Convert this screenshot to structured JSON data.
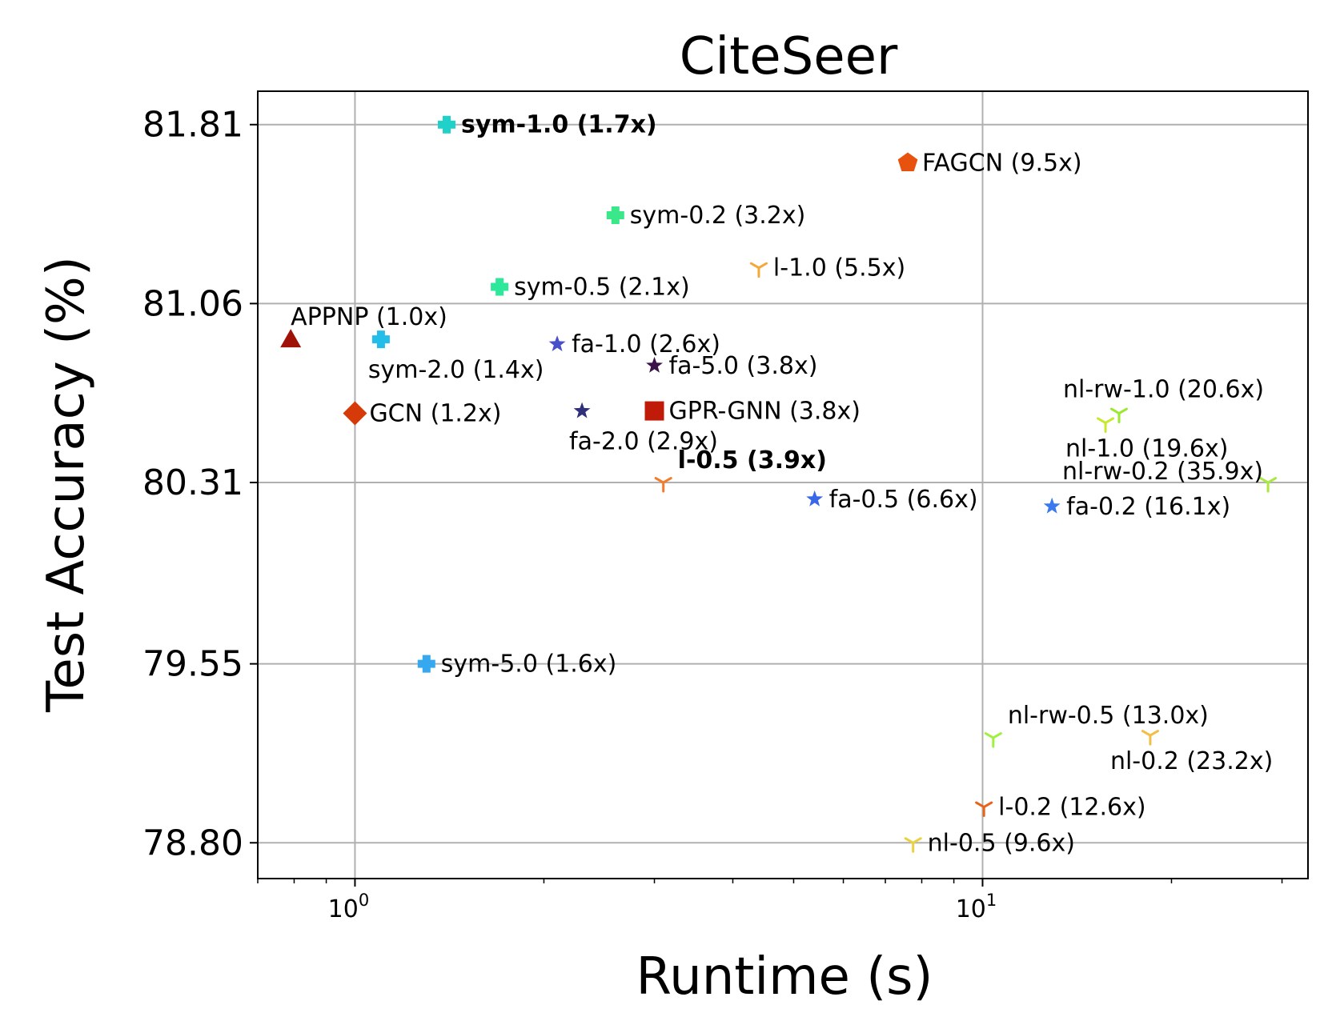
{
  "chart_data": {
    "type": "scatter",
    "title": "CiteSeer",
    "xlabel": "Runtime (s)",
    "ylabel": "Test Accuracy (%)",
    "xscale": "log",
    "xlim": [
      0.7,
      33
    ],
    "ylim": [
      78.65,
      81.95
    ],
    "grid": true,
    "xticks": [
      {
        "base": "10",
        "exp": "0",
        "value": 1
      },
      {
        "base": "10",
        "exp": "1",
        "value": 10
      }
    ],
    "yticks": [
      {
        "value": 78.8,
        "label": "78.80"
      },
      {
        "value": 79.55,
        "label": "79.55"
      },
      {
        "value": 80.31,
        "label": "80.31"
      },
      {
        "value": 81.06,
        "label": "81.06"
      },
      {
        "value": 81.81,
        "label": "81.81"
      }
    ],
    "points": [
      {
        "label": "sym-1.0 (1.7x)",
        "x": 1.4,
        "y": 81.81,
        "marker": "plus",
        "color": "#1fd1c8",
        "bold": true,
        "label_pos": "right"
      },
      {
        "label": "FAGCN (9.5x)",
        "x": 7.6,
        "y": 81.65,
        "marker": "pentagon",
        "color": "#e8520f",
        "bold": false,
        "label_pos": "right"
      },
      {
        "label": "sym-0.2 (3.2x)",
        "x": 2.6,
        "y": 81.43,
        "marker": "plus",
        "color": "#3ae88a",
        "bold": false,
        "label_pos": "right"
      },
      {
        "label": "l-1.0 (5.5x)",
        "x": 4.4,
        "y": 81.21,
        "marker": "tri",
        "color": "#f5a83a",
        "bold": false,
        "label_pos": "right"
      },
      {
        "label": "sym-0.5 (2.1x)",
        "x": 1.7,
        "y": 81.13,
        "marker": "plus",
        "color": "#2de89a",
        "bold": false,
        "label_pos": "right"
      },
      {
        "label": "APPNP (1.0x)",
        "x": 0.79,
        "y": 80.91,
        "marker": "triangle",
        "color": "#a01208",
        "bold": false,
        "label_pos": "above"
      },
      {
        "label": "sym-2.0 (1.4x)",
        "x": 1.1,
        "y": 80.91,
        "marker": "plus",
        "color": "#22bde8",
        "bold": false,
        "label_pos": "below"
      },
      {
        "label": "fa-1.0 (2.6x)",
        "x": 2.1,
        "y": 80.89,
        "marker": "star",
        "color": "#4750c8",
        "bold": false,
        "label_pos": "right"
      },
      {
        "label": "fa-5.0 (3.8x)",
        "x": 3.0,
        "y": 80.8,
        "marker": "star",
        "color": "#3a1348",
        "bold": false,
        "label_pos": "right"
      },
      {
        "label": "GCN (1.2x)",
        "x": 1.0,
        "y": 80.6,
        "marker": "diamond",
        "color": "#d63a08",
        "bold": false,
        "label_pos": "right"
      },
      {
        "label": "GPR-GNN (3.8x)",
        "x": 3.0,
        "y": 80.61,
        "marker": "square",
        "color": "#c01a08",
        "bold": false,
        "label_pos": "right"
      },
      {
        "label": "fa-2.0 (2.9x)",
        "x": 2.3,
        "y": 80.61,
        "marker": "star",
        "color": "#30307a",
        "bold": false,
        "label_pos": "below"
      },
      {
        "label": "l-0.5 (3.9x)",
        "x": 3.1,
        "y": 80.31,
        "marker": "tri",
        "color": "#f57a2a",
        "bold": true,
        "label_pos": "above-right"
      },
      {
        "label": "fa-0.5 (6.6x)",
        "x": 5.4,
        "y": 80.24,
        "marker": "star",
        "color": "#3868e8",
        "bold": false,
        "label_pos": "right"
      },
      {
        "label": "nl-rw-1.0 (20.6x)",
        "x": 16.5,
        "y": 80.6,
        "marker": "tri",
        "color": "#9ae830",
        "bold": false,
        "label_pos": "above"
      },
      {
        "label": "nl-1.0 (19.6x)",
        "x": 15.7,
        "y": 80.56,
        "marker": "tri",
        "color": "#c8e830",
        "bold": false,
        "label_pos": "below"
      },
      {
        "label": "nl-rw-0.2 (35.9x)",
        "x": 28.5,
        "y": 80.31,
        "marker": "tri",
        "color": "#a8e840",
        "bold": false,
        "label_pos": "above-left"
      },
      {
        "label": "fa-0.2 (16.1x)",
        "x": 12.9,
        "y": 80.21,
        "marker": "star",
        "color": "#3a78f0",
        "bold": false,
        "label_pos": "right"
      },
      {
        "label": "sym-5.0 (1.6x)",
        "x": 1.3,
        "y": 79.55,
        "marker": "plus",
        "color": "#35a8f0",
        "bold": false,
        "label_pos": "right"
      },
      {
        "label": "nl-rw-0.5 (13.0x)",
        "x": 10.4,
        "y": 79.24,
        "marker": "tri",
        "color": "#a0f040",
        "bold": false,
        "label_pos": "above-right"
      },
      {
        "label": "nl-0.2 (23.2x)",
        "x": 18.5,
        "y": 79.25,
        "marker": "tri",
        "color": "#f2be45",
        "bold": false,
        "label_pos": "below"
      },
      {
        "label": "l-0.2 (12.6x)",
        "x": 10.05,
        "y": 78.95,
        "marker": "tri",
        "color": "#e8641a",
        "bold": false,
        "label_pos": "right"
      },
      {
        "label": "nl-0.5 (9.6x)",
        "x": 7.75,
        "y": 78.8,
        "marker": "tri",
        "color": "#e8d240",
        "bold": false,
        "label_pos": "right"
      }
    ]
  }
}
